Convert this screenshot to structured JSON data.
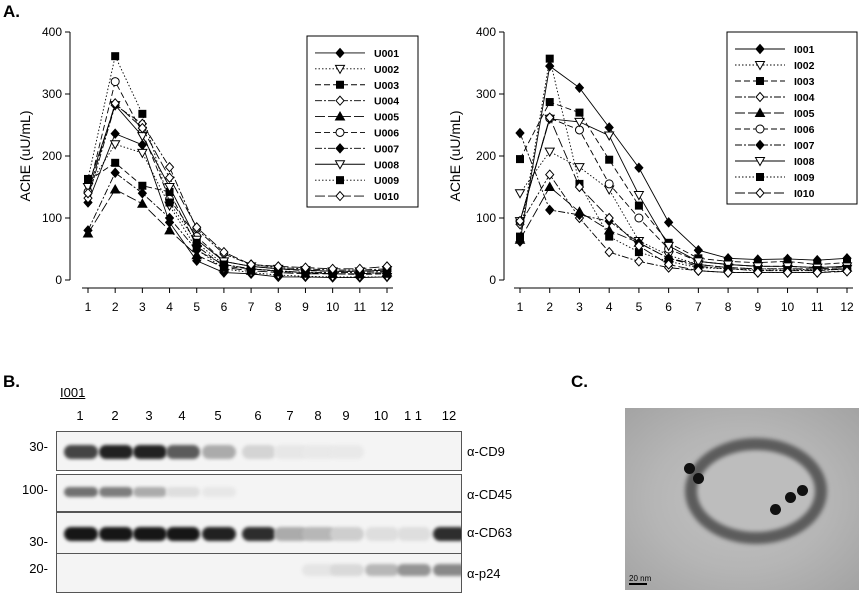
{
  "panels": {
    "a": "A.",
    "b": "B.",
    "c": "C."
  },
  "chart_data": [
    {
      "type": "line",
      "xlabel": "",
      "ylabel": "AChE (uU/mL)",
      "ylim": [
        0,
        400
      ],
      "yticks": [
        "0",
        "100",
        "200",
        "300",
        "400"
      ],
      "x": [
        1,
        2,
        3,
        4,
        5,
        6,
        7,
        8,
        9,
        10,
        11,
        12
      ],
      "legend_position": "top-right",
      "series": [
        {
          "name": "U001",
          "marker": "diamond-filled",
          "dash": "solid",
          "values": [
            125,
            236,
            218,
            93,
            31,
            12,
            10,
            5,
            5,
            4,
            4,
            5
          ]
        },
        {
          "name": "U002",
          "marker": "triangle-down-open",
          "dash": "dotted",
          "values": [
            150,
            219,
            205,
            120,
            50,
            18,
            12,
            8,
            6,
            5,
            5,
            5
          ]
        },
        {
          "name": "U003",
          "marker": "square-filled",
          "dash": "dashed",
          "values": [
            160,
            189,
            152,
            142,
            55,
            22,
            18,
            14,
            12,
            10,
            9,
            10
          ]
        },
        {
          "name": "U004",
          "marker": "diamond-open",
          "dash": "dashdot",
          "values": [
            132,
            282,
            252,
            182,
            82,
            42,
            25,
            20,
            18,
            16,
            16,
            18
          ]
        },
        {
          "name": "U005",
          "marker": "triangle-up-filled",
          "dash": "longdash",
          "values": [
            75,
            146,
            123,
            80,
            40,
            20,
            15,
            12,
            10,
            10,
            10,
            12
          ]
        },
        {
          "name": "U006",
          "marker": "circle-open",
          "dash": "dashed",
          "values": [
            142,
            320,
            238,
            130,
            70,
            30,
            22,
            18,
            15,
            14,
            14,
            16
          ]
        },
        {
          "name": "U007",
          "marker": "diamond-filled",
          "dash": "dashdot",
          "values": [
            80,
            173,
            140,
            100,
            48,
            25,
            18,
            15,
            12,
            12,
            12,
            14
          ]
        },
        {
          "name": "U008",
          "marker": "triangle-down-open",
          "dash": "solid",
          "values": [
            150,
            282,
            232,
            150,
            65,
            30,
            22,
            18,
            16,
            14,
            14,
            16
          ]
        },
        {
          "name": "U009",
          "marker": "square-filled",
          "dash": "dotted",
          "values": [
            163,
            361,
            268,
            125,
            60,
            25,
            18,
            14,
            12,
            10,
            10,
            12
          ]
        },
        {
          "name": "U010",
          "marker": "diamond-open",
          "dash": "longdash",
          "values": [
            140,
            285,
            245,
            165,
            85,
            45,
            25,
            22,
            20,
            18,
            18,
            22
          ]
        }
      ]
    },
    {
      "type": "line",
      "xlabel": "",
      "ylabel": "AChE (uU/mL)",
      "ylim": [
        0,
        400
      ],
      "yticks": [
        "0",
        "100",
        "200",
        "300",
        "400"
      ],
      "x": [
        1,
        2,
        3,
        4,
        5,
        6,
        7,
        8,
        9,
        10,
        11,
        12
      ],
      "legend_position": "top-right",
      "series": [
        {
          "name": "I001",
          "marker": "diamond-filled",
          "dash": "solid",
          "values": [
            62,
            345,
            310,
            246,
            181,
            93,
            48,
            35,
            33,
            34,
            32,
            35
          ]
        },
        {
          "name": "I002",
          "marker": "triangle-down-open",
          "dash": "dotted",
          "values": [
            140,
            207,
            182,
            146,
            63,
            40,
            25,
            20,
            18,
            18,
            16,
            18
          ]
        },
        {
          "name": "I003",
          "marker": "square-filled",
          "dash": "dashed",
          "values": [
            195,
            287,
            270,
            194,
            120,
            60,
            35,
            30,
            28,
            30,
            25,
            28
          ]
        },
        {
          "name": "I004",
          "marker": "diamond-open",
          "dash": "dashdot",
          "values": [
            90,
            170,
            100,
            45,
            30,
            20,
            15,
            12,
            12,
            12,
            12,
            15
          ]
        },
        {
          "name": "I005",
          "marker": "triangle-up-filled",
          "dash": "longdash",
          "values": [
            65,
            150,
            110,
            80,
            60,
            35,
            25,
            20,
            18,
            18,
            18,
            20
          ]
        },
        {
          "name": "I006",
          "marker": "circle-open",
          "dash": "dashed",
          "values": [
            95,
            261,
            242,
            155,
            100,
            50,
            30,
            25,
            22,
            22,
            20,
            22
          ]
        },
        {
          "name": "I007",
          "marker": "diamond-filled",
          "dash": "dashdot",
          "values": [
            237,
            113,
            105,
            95,
            60,
            35,
            22,
            18,
            15,
            15,
            15,
            18
          ]
        },
        {
          "name": "I008",
          "marker": "triangle-down-open",
          "dash": "solid",
          "values": [
            95,
            260,
            255,
            233,
            137,
            55,
            30,
            25,
            22,
            22,
            20,
            22
          ]
        },
        {
          "name": "I009",
          "marker": "square-filled",
          "dash": "dotted",
          "values": [
            70,
            357,
            155,
            70,
            45,
            30,
            20,
            18,
            16,
            16,
            16,
            18
          ]
        },
        {
          "name": "I010",
          "marker": "diamond-open",
          "dash": "longdash",
          "values": [
            95,
            262,
            150,
            100,
            55,
            25,
            15,
            12,
            12,
            12,
            12,
            14
          ]
        }
      ]
    }
  ],
  "blot": {
    "sample_label": "I001",
    "lanes": [
      "1",
      "2",
      "3",
      "4",
      "5",
      "6",
      "7",
      "8",
      "9",
      "10",
      "1 1",
      "12"
    ],
    "rows": [
      {
        "mw": "30-",
        "antibody": "α-CD9",
        "intensity": [
          0.75,
          0.9,
          0.9,
          0.65,
          0.3,
          0.12,
          0.04,
          0.03,
          0.03,
          0,
          0,
          0
        ]
      },
      {
        "mw": "100-",
        "antibody": "α-CD45",
        "intensity": [
          0.55,
          0.5,
          0.3,
          0.08,
          0.04,
          0,
          0,
          0,
          0,
          0,
          0,
          0
        ]
      },
      {
        "mw": "30-",
        "antibody": "α-CD63",
        "intensity": [
          0.95,
          0.95,
          0.95,
          0.95,
          0.9,
          0.85,
          0.3,
          0.25,
          0.15,
          0.08,
          0.08,
          0.85
        ]
      },
      {
        "mw": "20-",
        "antibody": "α-p24",
        "intensity": [
          0,
          0,
          0,
          0,
          0,
          0,
          0,
          0.05,
          0.1,
          0.25,
          0.4,
          0.45
        ]
      }
    ]
  },
  "em": {
    "scale_label": "20  nm"
  }
}
